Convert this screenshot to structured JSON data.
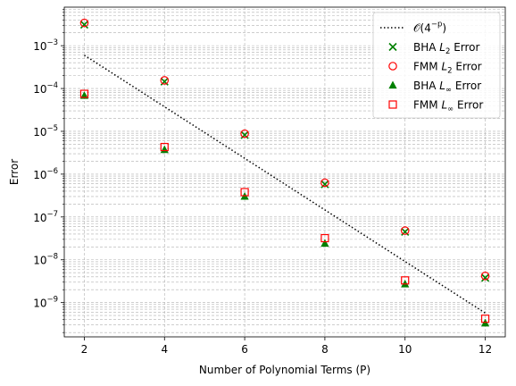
{
  "chart_data": {
    "type": "scatter",
    "title": "",
    "xlabel": "Number of Polynomial Terms (P)",
    "ylabel": "Error",
    "xlim": [
      1.5,
      12.5
    ],
    "ylim_log10": [
      -9.8,
      -2.1
    ],
    "yscale": "log",
    "grid": "both, major and minor, dashed",
    "legend_position": "top-right",
    "x_ticks": [
      2,
      4,
      6,
      8,
      10,
      12
    ],
    "y_ticks": [
      {
        "base": "10",
        "exp": "−3",
        "value": 0.001
      },
      {
        "base": "10",
        "exp": "−4",
        "value": 0.0001
      },
      {
        "base": "10",
        "exp": "−5",
        "value": 1e-05
      },
      {
        "base": "10",
        "exp": "−6",
        "value": 1e-06
      },
      {
        "base": "10",
        "exp": "−7",
        "value": 1e-07
      },
      {
        "base": "10",
        "exp": "−8",
        "value": 1e-08
      },
      {
        "base": "10",
        "exp": "−9",
        "value": 1e-09
      }
    ],
    "series": [
      {
        "name": "𝒪(4⁻ᴾ)",
        "legend": {
          "main": "𝒪(4",
          "sup": "−p",
          "tail": ")"
        },
        "marker": "dotted-line",
        "color": "#000000",
        "x": [
          2,
          12
        ],
        "y": [
          0.0006,
          5.7e-10
        ]
      },
      {
        "name": "BHA L2 Error",
        "legend": {
          "pre": "BHA ",
          "var": "L",
          "sub": "2",
          "post": " Error"
        },
        "marker": "x",
        "color": "#008000",
        "x": [
          2,
          4,
          6,
          8,
          10,
          12
        ],
        "y": [
          0.0031,
          0.000145,
          8.2e-06,
          5.8e-07,
          4.5e-08,
          3.8e-09
        ]
      },
      {
        "name": "FMM L2 Error",
        "legend": {
          "pre": "FMM ",
          "var": "L",
          "sub": "2",
          "post": " Error"
        },
        "marker": "circle",
        "color": "#ff0000",
        "x": [
          2,
          4,
          6,
          8,
          10,
          12
        ],
        "y": [
          0.0034,
          0.000155,
          8.8e-06,
          6.3e-07,
          4.8e-08,
          4.2e-09
        ]
      },
      {
        "name": "BHA L∞ Error",
        "legend": {
          "pre": "BHA ",
          "var": "L",
          "sub": "∞",
          "post": " Error"
        },
        "marker": "triangle",
        "color": "#008000",
        "x": [
          2,
          4,
          6,
          8,
          10,
          12
        ],
        "y": [
          6.8e-05,
          3.7e-06,
          3e-07,
          2.4e-08,
          2.7e-09,
          3.3e-10
        ]
      },
      {
        "name": "FMM L∞ Error",
        "legend": {
          "pre": "FMM ",
          "var": "L",
          "sub": "∞",
          "post": " Error"
        },
        "marker": "square",
        "color": "#ff0000",
        "x": [
          2,
          4,
          6,
          8,
          10,
          12
        ],
        "y": [
          7.5e-05,
          4.3e-06,
          3.8e-07,
          3.2e-08,
          3.3e-09,
          4.2e-10
        ]
      }
    ]
  }
}
